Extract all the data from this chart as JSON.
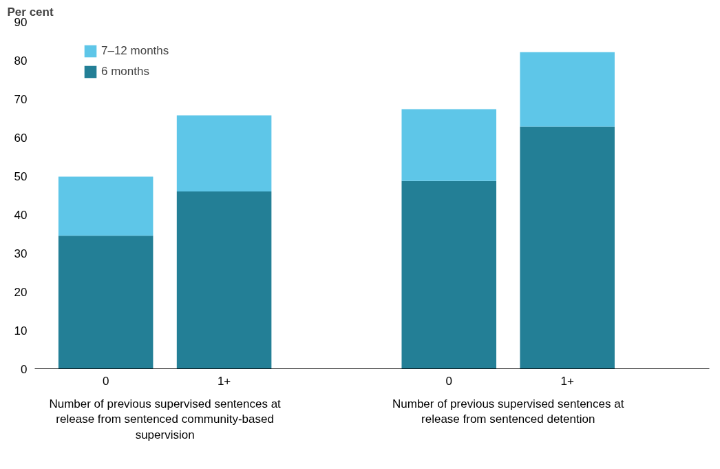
{
  "chart_data": {
    "type": "bar",
    "stacked": true,
    "ylabel": "Per cent",
    "categories": [
      "0",
      "1+",
      "0",
      "1+"
    ],
    "series": [
      {
        "name": "6 months",
        "color": "#237f96",
        "values": [
          34.5,
          46.0,
          48.7,
          62.8
        ]
      },
      {
        "name": "7–12 months",
        "color": "#5ec6e8",
        "values": [
          15.3,
          19.7,
          18.6,
          19.3
        ]
      }
    ],
    "ylim": [
      0,
      90
    ],
    "yticks": [
      0,
      10,
      20,
      30,
      40,
      50,
      60,
      70,
      80,
      90
    ],
    "grid": false,
    "legend": "top left",
    "annotations": [
      "Number of previous supervised sentences at release from sentenced community-based supervision",
      "Number of previous supervised sentences at release from sentenced detention"
    ]
  }
}
